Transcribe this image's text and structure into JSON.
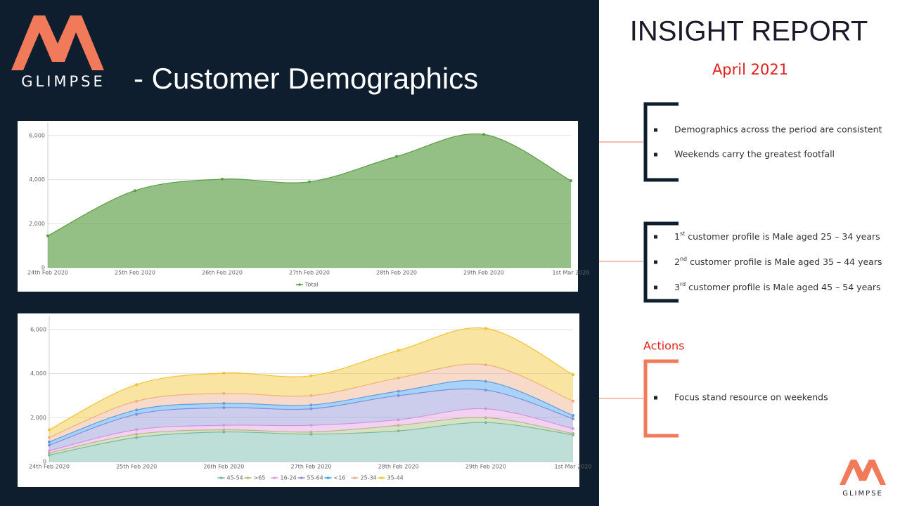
{
  "logo": {
    "text": "GLIMPSE"
  },
  "header": {
    "title": "- Customer Demographics"
  },
  "report": {
    "title": "INSIGHT REPORT",
    "date": "April 2021",
    "findings": [
      "Demographics across the period are consistent",
      "Weekends carry the greatest footfall"
    ],
    "profiles": [
      {
        "rank": "1",
        "suffix": "st",
        "text": " customer profile is Male aged 25 – 34 years"
      },
      {
        "rank": "2",
        "suffix": "nd",
        "text": " customer profile is Male aged 35 – 44 years"
      },
      {
        "rank": "3",
        "suffix": "rd",
        "text": " customer profile is Male aged 45 – 54 years"
      }
    ],
    "actions_title": "Actions",
    "actions": [
      "Focus stand resource on weekends"
    ]
  },
  "chart_data": [
    {
      "type": "area",
      "categories": [
        "24th Feb 2020",
        "25th Feb 2020",
        "26th Feb 2020",
        "27th Feb 2020",
        "28th Feb 2020",
        "29th Feb 2020",
        "1st Mar 2020"
      ],
      "series": [
        {
          "name": "Total",
          "color": "#5a9e45",
          "values": [
            1450,
            3500,
            4020,
            3900,
            5050,
            6050,
            3950
          ]
        }
      ],
      "ylim": [
        0,
        6600
      ],
      "yticks": [
        0,
        {
          "value": 2000,
          "label": "2,000"
        },
        {
          "value": 4000,
          "label": "4,000"
        },
        {
          "value": 6000,
          "label": "6,000"
        }
      ],
      "grid": true,
      "legend": "bottom"
    },
    {
      "type": "stacked_area",
      "categories": [
        "24th Feb 2020",
        "25th Feb 2020",
        "26th Feb 2020",
        "27th Feb 2020",
        "28th Feb 2020",
        "29th Feb 2020",
        "1st Mar 2020"
      ],
      "series": [
        {
          "name": "45-54",
          "color": "#6fb8a8",
          "values": [
            300,
            1100,
            1350,
            1250,
            1400,
            1780,
            1220
          ]
        },
        {
          "name": ">65",
          "color": "#a8bf7a",
          "values": [
            100,
            150,
            100,
            100,
            250,
            220,
            60
          ]
        },
        {
          "name": "16-24",
          "color": "#e49be0",
          "values": [
            100,
            200,
            200,
            300,
            250,
            400,
            220
          ]
        },
        {
          "name": "55-64",
          "color": "#8f8fd6",
          "values": [
            250,
            700,
            800,
            750,
            1100,
            850,
            450
          ]
        },
        {
          "name": "<16",
          "color": "#3f9cf0",
          "values": [
            150,
            200,
            200,
            180,
            200,
            400,
            150
          ]
        },
        {
          "name": "25-34",
          "color": "#f0ad8a",
          "values": [
            200,
            400,
            450,
            420,
            600,
            750,
            650
          ]
        },
        {
          "name": "35-44",
          "color": "#f2c330",
          "values": [
            350,
            750,
            920,
            900,
            1250,
            1650,
            1200
          ]
        }
      ],
      "ylim": [
        0,
        6600
      ],
      "yticks": [
        0,
        {
          "value": 2000,
          "label": "2,000"
        },
        {
          "value": 4000,
          "label": "4,000"
        },
        {
          "value": 6000,
          "label": "6,000"
        }
      ],
      "grid": true,
      "legend": "bottom"
    }
  ]
}
